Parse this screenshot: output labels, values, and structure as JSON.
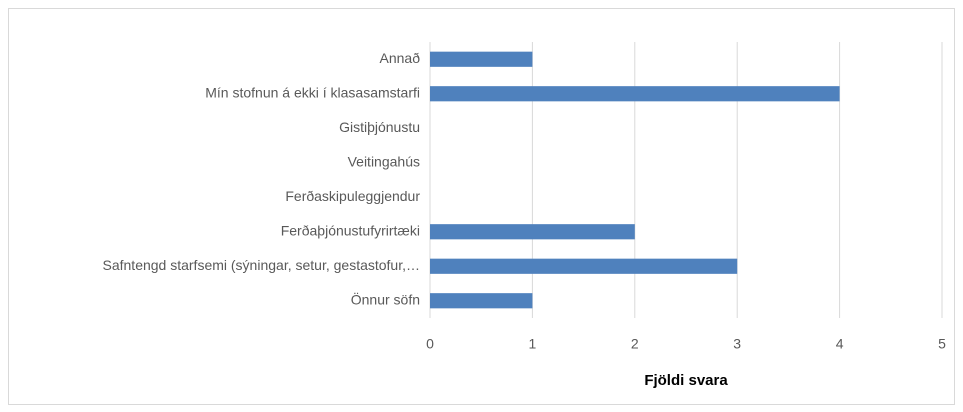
{
  "chart_data": {
    "type": "hbar",
    "categories": [
      "Annað",
      "Mín stofnun á ekki í klasasamstarfi",
      "Gistiþjónustu",
      "Veitingahús",
      "Ferðaskipuleggjendur",
      "Ferðaþjónustufyrirtæki",
      "Safntengd starfsemi (sýningar, setur, gestastofur,…",
      "Önnur söfn"
    ],
    "values": [
      1,
      4,
      0,
      0,
      0,
      2,
      3,
      1
    ],
    "color": "#4f81bd",
    "xlabel": "Fjöldi svara",
    "xlim": [
      0,
      5
    ],
    "xticks": [
      0,
      1,
      2,
      3,
      4,
      5
    ],
    "grid": true
  }
}
